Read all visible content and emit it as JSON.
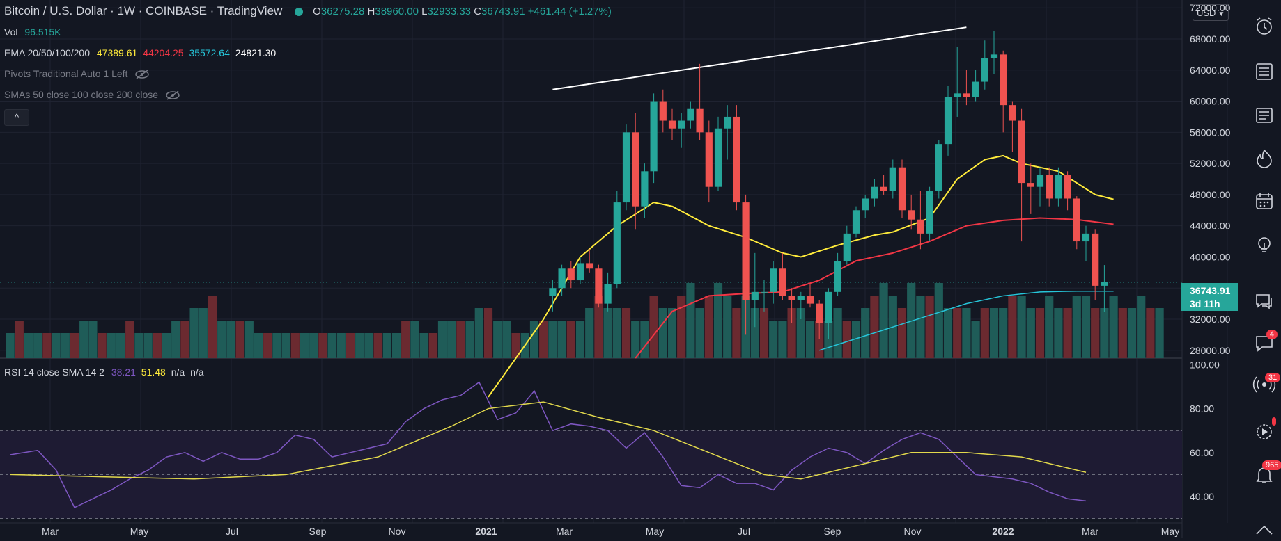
{
  "header": {
    "title": "Bitcoin / U.S. Dollar · 1W · COINBASE · TradingView",
    "open_label": "O",
    "open": "36275.28",
    "high_label": "H",
    "high": "38960.00",
    "low_label": "L",
    "low": "32933.33",
    "close_label": "C",
    "close": "36743.91",
    "change": "+461.44 (+1.27%)"
  },
  "legend": {
    "vol_label": "Vol",
    "vol_value": "96.515K",
    "ema_label": "EMA 20/50/100/200",
    "ema_values": [
      "47389.61",
      "44204.25",
      "35572.64",
      "24821.30"
    ],
    "pivots_label": "Pivots Traditional Auto 1 Left",
    "smas_label": "SMAs 50 close 100 close 200 close",
    "collapse_icon": "chevron-up-icon"
  },
  "rsi_legend": {
    "label": "RSI 14 close SMA 14 2",
    "values": [
      "38.21",
      "51.48",
      "n/a",
      "n/a"
    ]
  },
  "price_axis": {
    "currency": "USD",
    "labels": [
      "72000.00",
      "68000.00",
      "64000.00",
      "60000.00",
      "56000.00",
      "52000.00",
      "48000.00",
      "44000.00",
      "40000.00",
      "32000.00",
      "28000.00"
    ],
    "current_price": "36743.91",
    "countdown": "3d 11h"
  },
  "rsi_axis": {
    "labels": [
      "100.00",
      "80.00",
      "60.00",
      "40.00"
    ]
  },
  "time_axis": {
    "labels": [
      "Mar",
      "May",
      "Jul",
      "Sep",
      "Nov",
      "2021",
      "Mar",
      "May",
      "Jul",
      "Sep",
      "Nov",
      "2022",
      "Mar",
      "May"
    ]
  },
  "colors": {
    "up": "#26a69a",
    "down": "#ef5350",
    "ema20": "#ffeb3b",
    "ema50": "#f23645",
    "ema100": "#26c6da",
    "rsi": "#7e57c2",
    "rsi_sma": "#e2d94c",
    "rsi_band": "#1e1b33"
  },
  "toolbar": {
    "icons": [
      "alarm-clock-icon",
      "watchlist-icon",
      "news-icon",
      "hotlist-icon",
      "calendar-icon",
      "idea-lightbulb-icon",
      "chat-icon",
      "notifications-icon",
      "signals-icon",
      "streams-icon",
      "alerts-icon"
    ],
    "badges": {
      "chat": "4",
      "signals": "31",
      "alerts": "965"
    }
  },
  "chart_data": {
    "type": "candlestick",
    "interval": "1W",
    "price_range": [
      27000,
      73000
    ],
    "candles": [
      {
        "o": 35000,
        "h": 37000,
        "l": 33000,
        "c": 36000
      },
      {
        "o": 36000,
        "h": 39000,
        "l": 35000,
        "c": 38500
      },
      {
        "o": 38500,
        "h": 39500,
        "l": 36000,
        "c": 37000
      },
      {
        "o": 37000,
        "h": 40000,
        "l": 36500,
        "c": 39200
      },
      {
        "o": 39200,
        "h": 41000,
        "l": 38000,
        "c": 38500
      },
      {
        "o": 38500,
        "h": 39000,
        "l": 33500,
        "c": 34000
      },
      {
        "o": 34000,
        "h": 38000,
        "l": 33000,
        "c": 36500
      },
      {
        "o": 36500,
        "h": 48500,
        "l": 36000,
        "c": 47000
      },
      {
        "o": 47000,
        "h": 57000,
        "l": 46000,
        "c": 56000
      },
      {
        "o": 56000,
        "h": 58500,
        "l": 43500,
        "c": 46500
      },
      {
        "o": 46500,
        "h": 52000,
        "l": 45000,
        "c": 51000
      },
      {
        "o": 51000,
        "h": 61000,
        "l": 49500,
        "c": 60000
      },
      {
        "o": 60000,
        "h": 61500,
        "l": 56000,
        "c": 57500
      },
      {
        "o": 57500,
        "h": 59000,
        "l": 55000,
        "c": 56500
      },
      {
        "o": 56500,
        "h": 58500,
        "l": 54000,
        "c": 57500
      },
      {
        "o": 57500,
        "h": 60000,
        "l": 56500,
        "c": 59000
      },
      {
        "o": 59000,
        "h": 64800,
        "l": 55000,
        "c": 56000
      },
      {
        "o": 56000,
        "h": 57500,
        "l": 47000,
        "c": 49000
      },
      {
        "o": 49000,
        "h": 58000,
        "l": 48500,
        "c": 56500
      },
      {
        "o": 56500,
        "h": 59500,
        "l": 52500,
        "c": 58000
      },
      {
        "o": 58000,
        "h": 59500,
        "l": 46000,
        "c": 47000
      },
      {
        "o": 47000,
        "h": 48000,
        "l": 30000,
        "c": 34500
      },
      {
        "o": 34500,
        "h": 40500,
        "l": 31000,
        "c": 35500
      },
      {
        "o": 35500,
        "h": 37000,
        "l": 33000,
        "c": 35500
      },
      {
        "o": 35500,
        "h": 39500,
        "l": 34000,
        "c": 38500
      },
      {
        "o": 38500,
        "h": 40500,
        "l": 34500,
        "c": 35000
      },
      {
        "o": 35000,
        "h": 36000,
        "l": 31500,
        "c": 34500
      },
      {
        "o": 34500,
        "h": 35500,
        "l": 32000,
        "c": 35000
      },
      {
        "o": 35000,
        "h": 36500,
        "l": 33500,
        "c": 34000
      },
      {
        "o": 34000,
        "h": 34500,
        "l": 29500,
        "c": 31500
      },
      {
        "o": 31500,
        "h": 36000,
        "l": 29500,
        "c": 35500
      },
      {
        "o": 35500,
        "h": 40500,
        "l": 35000,
        "c": 39500
      },
      {
        "o": 39500,
        "h": 44000,
        "l": 39000,
        "c": 43000
      },
      {
        "o": 43000,
        "h": 46500,
        "l": 42500,
        "c": 46000
      },
      {
        "o": 46000,
        "h": 48000,
        "l": 45000,
        "c": 47500
      },
      {
        "o": 47500,
        "h": 50000,
        "l": 46500,
        "c": 49000
      },
      {
        "o": 49000,
        "h": 50500,
        "l": 48000,
        "c": 48500
      },
      {
        "o": 48500,
        "h": 52500,
        "l": 47500,
        "c": 51500
      },
      {
        "o": 51500,
        "h": 52500,
        "l": 45000,
        "c": 46000
      },
      {
        "o": 46000,
        "h": 48000,
        "l": 43500,
        "c": 44800
      },
      {
        "o": 44800,
        "h": 48500,
        "l": 41000,
        "c": 43000
      },
      {
        "o": 43000,
        "h": 49000,
        "l": 42000,
        "c": 48500
      },
      {
        "o": 48500,
        "h": 55000,
        "l": 47500,
        "c": 54500
      },
      {
        "o": 54500,
        "h": 62000,
        "l": 53000,
        "c": 60500
      },
      {
        "o": 60500,
        "h": 67000,
        "l": 58000,
        "c": 61000
      },
      {
        "o": 61000,
        "h": 64000,
        "l": 59500,
        "c": 60500
      },
      {
        "o": 60500,
        "h": 64000,
        "l": 60000,
        "c": 62500
      },
      {
        "o": 62500,
        "h": 67800,
        "l": 61500,
        "c": 65500
      },
      {
        "o": 65500,
        "h": 69000,
        "l": 63500,
        "c": 66000
      },
      {
        "o": 66000,
        "h": 66500,
        "l": 56000,
        "c": 59500
      },
      {
        "o": 59500,
        "h": 60000,
        "l": 53500,
        "c": 57500
      },
      {
        "o": 57500,
        "h": 59000,
        "l": 42000,
        "c": 49500
      },
      {
        "o": 49500,
        "h": 52000,
        "l": 45500,
        "c": 49000
      },
      {
        "o": 49000,
        "h": 51500,
        "l": 46500,
        "c": 50500
      },
      {
        "o": 50500,
        "h": 51500,
        "l": 46500,
        "c": 47500
      },
      {
        "o": 47500,
        "h": 51500,
        "l": 46500,
        "c": 50500
      },
      {
        "o": 50500,
        "h": 51000,
        "l": 46000,
        "c": 47500
      },
      {
        "o": 47500,
        "h": 47800,
        "l": 41000,
        "c": 42000
      },
      {
        "o": 42000,
        "h": 44000,
        "l": 39500,
        "c": 43000
      },
      {
        "o": 43000,
        "h": 43500,
        "l": 34500,
        "c": 36300
      },
      {
        "o": 36300,
        "h": 38960,
        "l": 32900,
        "c": 36750
      }
    ],
    "volume": [
      2,
      3,
      2,
      2,
      2,
      2,
      2,
      2,
      3,
      3,
      2,
      2,
      2,
      3,
      2,
      2,
      2,
      2,
      3,
      3,
      4,
      4,
      5,
      3,
      3,
      3,
      3,
      2,
      2,
      2,
      2,
      2,
      2,
      2,
      2,
      2,
      2,
      2,
      2,
      2,
      2,
      2,
      2,
      3,
      3,
      2,
      2,
      3,
      3,
      3,
      3,
      4,
      4,
      3,
      3,
      2,
      2,
      3,
      3,
      3,
      3,
      3,
      3,
      4,
      5,
      4,
      4,
      4,
      3,
      3,
      5,
      4,
      4,
      5,
      6,
      4,
      5,
      6,
      5,
      4,
      5,
      4,
      4,
      3,
      3,
      4,
      4,
      3,
      3,
      3,
      4,
      3,
      3,
      4,
      5,
      6,
      5,
      4,
      6,
      5,
      5,
      6,
      4,
      4,
      4,
      3,
      4,
      4,
      4,
      5,
      5,
      4,
      4,
      5,
      4,
      4,
      5,
      5,
      4,
      4,
      5,
      4,
      4,
      5,
      4,
      4
    ],
    "ema20": [
      [
        52,
        22000
      ],
      [
        58,
        32000
      ],
      [
        62,
        40000
      ],
      [
        66,
        44000
      ],
      [
        70,
        47000
      ],
      [
        72,
        46500
      ],
      [
        76,
        44000
      ],
      [
        80,
        42500
      ],
      [
        84,
        40500
      ],
      [
        86,
        40000
      ],
      [
        90,
        41500
      ],
      [
        94,
        42800
      ],
      [
        96,
        43200
      ],
      [
        100,
        45000
      ],
      [
        103,
        50000
      ],
      [
        106,
        52500
      ],
      [
        108,
        53000
      ],
      [
        110,
        52000
      ],
      [
        114,
        51000
      ],
      [
        118,
        48000
      ],
      [
        120,
        47400
      ]
    ],
    "ema50": [
      [
        68,
        27000
      ],
      [
        72,
        33000
      ],
      [
        76,
        35000
      ],
      [
        80,
        35300
      ],
      [
        84,
        35500
      ],
      [
        88,
        37000
      ],
      [
        92,
        39500
      ],
      [
        96,
        40500
      ],
      [
        100,
        42000
      ],
      [
        104,
        44000
      ],
      [
        108,
        44700
      ],
      [
        112,
        45000
      ],
      [
        116,
        44800
      ],
      [
        120,
        44200
      ]
    ],
    "ema100": [
      [
        88,
        28000
      ],
      [
        92,
        29500
      ],
      [
        96,
        31000
      ],
      [
        100,
        32500
      ],
      [
        104,
        34000
      ],
      [
        108,
        35000
      ],
      [
        112,
        35500
      ],
      [
        116,
        35600
      ],
      [
        120,
        35600
      ]
    ],
    "trendline": [
      [
        59,
        61500
      ],
      [
        104,
        69500
      ]
    ],
    "rsi_range": [
      28,
      102
    ],
    "rsi": [
      [
        0,
        59
      ],
      [
        3,
        61
      ],
      [
        5,
        52
      ],
      [
        7,
        35
      ],
      [
        9,
        39
      ],
      [
        11,
        43
      ],
      [
        13,
        48
      ],
      [
        15,
        52
      ],
      [
        17,
        58
      ],
      [
        19,
        60
      ],
      [
        21,
        56
      ],
      [
        23,
        60
      ],
      [
        25,
        57
      ],
      [
        27,
        57
      ],
      [
        29,
        60
      ],
      [
        31,
        68
      ],
      [
        33,
        66
      ],
      [
        35,
        58
      ],
      [
        37,
        60
      ],
      [
        39,
        62
      ],
      [
        41,
        64
      ],
      [
        43,
        74
      ],
      [
        45,
        80
      ],
      [
        47,
        84
      ],
      [
        49,
        86
      ],
      [
        51,
        92
      ],
      [
        53,
        75
      ],
      [
        55,
        78
      ],
      [
        57,
        88
      ],
      [
        59,
        70
      ],
      [
        61,
        73
      ],
      [
        63,
        72
      ],
      [
        65,
        70
      ],
      [
        67,
        62
      ],
      [
        69,
        69
      ],
      [
        71,
        58
      ],
      [
        73,
        45
      ],
      [
        75,
        44
      ],
      [
        77,
        50
      ],
      [
        79,
        46
      ],
      [
        81,
        46
      ],
      [
        83,
        43
      ],
      [
        85,
        52
      ],
      [
        87,
        58
      ],
      [
        89,
        62
      ],
      [
        91,
        60
      ],
      [
        93,
        55
      ],
      [
        95,
        61
      ],
      [
        97,
        66
      ],
      [
        99,
        69
      ],
      [
        101,
        66
      ],
      [
        103,
        58
      ],
      [
        105,
        50
      ],
      [
        107,
        49
      ],
      [
        109,
        48
      ],
      [
        111,
        46
      ],
      [
        113,
        42
      ],
      [
        115,
        39
      ],
      [
        117,
        38
      ]
    ],
    "rsi_sma": [
      [
        0,
        50
      ],
      [
        10,
        49
      ],
      [
        20,
        48
      ],
      [
        30,
        50
      ],
      [
        40,
        58
      ],
      [
        48,
        72
      ],
      [
        52,
        80
      ],
      [
        58,
        83
      ],
      [
        64,
        76
      ],
      [
        70,
        70
      ],
      [
        76,
        60
      ],
      [
        82,
        50
      ],
      [
        86,
        48
      ],
      [
        92,
        54
      ],
      [
        98,
        60
      ],
      [
        104,
        60
      ],
      [
        110,
        58
      ],
      [
        117,
        51
      ]
    ],
    "rsi_levels": [
      70,
      50,
      30
    ]
  }
}
